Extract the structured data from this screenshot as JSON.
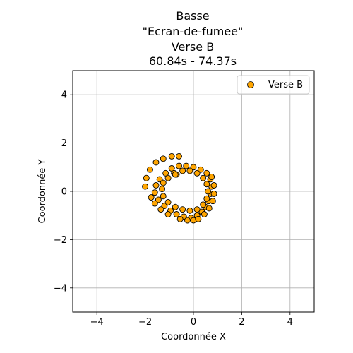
{
  "chart_data": {
    "type": "scatter",
    "title_lines": [
      "Basse",
      "\"Ecran-de-fumee\"",
      "Verse B",
      "60.84s - 74.37s"
    ],
    "xlabel": "Coordonnée X",
    "ylabel": "Coordonnée Y",
    "xlim": [
      -5,
      5
    ],
    "ylim": [
      -5,
      5
    ],
    "xticks": [
      -4,
      -2,
      0,
      2,
      4
    ],
    "yticks": [
      -4,
      -2,
      0,
      2,
      4
    ],
    "xtick_labels": [
      "−4",
      "−2",
      "0",
      "2",
      "4"
    ],
    "ytick_labels": [
      "−4",
      "−2",
      "0",
      "2",
      "4"
    ],
    "grid": true,
    "legend_position": "top-right",
    "series": [
      {
        "name": "Verse B",
        "color": "#FFA500",
        "edge_color": "#000000",
        "points": [
          [
            -0.7,
            0.7
          ],
          [
            -0.9,
            0.95
          ],
          [
            -0.6,
            1.05
          ],
          [
            -0.3,
            1.05
          ],
          [
            0.0,
            1.0
          ],
          [
            0.3,
            0.9
          ],
          [
            0.55,
            0.75
          ],
          [
            0.7,
            0.5
          ],
          [
            0.75,
            0.2
          ],
          [
            0.72,
            -0.1
          ],
          [
            0.62,
            -0.4
          ],
          [
            0.5,
            -0.65
          ],
          [
            0.35,
            -0.85
          ],
          [
            0.15,
            -1.0
          ],
          [
            -0.1,
            -1.1
          ],
          [
            -0.4,
            -1.05
          ],
          [
            -0.7,
            -0.95
          ],
          [
            -0.95,
            -0.8
          ],
          [
            -1.2,
            -0.6
          ],
          [
            -1.45,
            -0.35
          ],
          [
            -1.6,
            -0.05
          ],
          [
            -1.55,
            0.25
          ],
          [
            -1.4,
            0.5
          ],
          [
            -1.15,
            0.75
          ],
          [
            -2.0,
            0.2
          ],
          [
            -1.95,
            0.55
          ],
          [
            -1.8,
            0.9
          ],
          [
            -1.55,
            1.2
          ],
          [
            -1.25,
            1.35
          ],
          [
            -0.9,
            1.45
          ],
          [
            -0.6,
            1.45
          ],
          [
            -1.3,
            0.1
          ],
          [
            -1.25,
            -0.2
          ],
          [
            -1.05,
            -0.45
          ],
          [
            -0.75,
            -0.65
          ],
          [
            -0.45,
            -0.75
          ],
          [
            -0.15,
            -0.8
          ],
          [
            0.15,
            -0.75
          ],
          [
            0.4,
            -0.55
          ],
          [
            0.55,
            -0.3
          ],
          [
            0.6,
            0.0
          ],
          [
            0.55,
            0.3
          ],
          [
            0.4,
            0.55
          ],
          [
            0.15,
            0.75
          ],
          [
            -0.15,
            0.85
          ],
          [
            -0.45,
            0.85
          ],
          [
            -0.8,
            0.75
          ],
          [
            -1.05,
            0.55
          ],
          [
            -1.25,
            0.35
          ],
          [
            0.0,
            -1.2
          ],
          [
            -0.25,
            -1.2
          ],
          [
            -0.55,
            -1.15
          ],
          [
            0.2,
            -1.15
          ],
          [
            0.45,
            -0.95
          ],
          [
            0.65,
            -0.7
          ],
          [
            0.8,
            -0.4
          ],
          [
            0.85,
            -0.1
          ],
          [
            0.85,
            0.25
          ],
          [
            0.75,
            0.6
          ],
          [
            -1.75,
            -0.25
          ],
          [
            -1.6,
            -0.5
          ],
          [
            -1.35,
            -0.75
          ],
          [
            -1.05,
            -0.95
          ],
          [
            -0.75,
            0.7
          ]
        ]
      }
    ]
  }
}
